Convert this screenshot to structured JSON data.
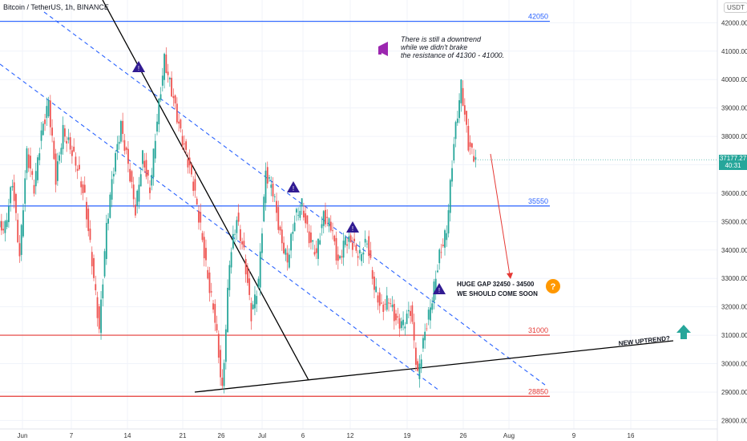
{
  "header": {
    "symbol": "Bitcoin / TetherUS, 1h, BINANCE",
    "currency": "USDT"
  },
  "price_tag": {
    "price": "37177.27",
    "countdown": "40:31"
  },
  "colors": {
    "up": "#26a69a",
    "down": "#ef5350",
    "blue_line": "#2962ff",
    "red_line": "#e53935",
    "trend_black": "#000000"
  },
  "chart_data": {
    "type": "line",
    "y_ticks": [
      "42000.00",
      "41000.00",
      "40000.00",
      "39000.00",
      "38000.00",
      "37000.00",
      "36000.00",
      "35000.00",
      "34000.00",
      "33000.00",
      "32000.00",
      "31000.00",
      "30000.00",
      "29000.00",
      "28000.00"
    ],
    "x_ticks": [
      "Jun",
      "7",
      "14",
      "21",
      "26",
      "Jul",
      "6",
      "12",
      "19",
      "26",
      "Aug",
      "9",
      "16"
    ],
    "ylim": [
      27700,
      42800
    ],
    "levels": [
      {
        "label": "42050",
        "value": 42050,
        "color": "#2962ff"
      },
      {
        "label": "35550",
        "value": 35550,
        "color": "#2962ff"
      },
      {
        "label": "31000",
        "value": 31000,
        "color": "#e53935"
      },
      {
        "label": "28850",
        "value": 28850,
        "color": "#e53935"
      }
    ],
    "series": [
      {
        "values": [
          34800,
          36400,
          33800,
          37400,
          36200,
          38100,
          39200,
          36500,
          38200,
          37600,
          36900,
          35800,
          33600,
          31200,
          34800,
          36900,
          38400,
          37000,
          35400,
          37300,
          36100,
          38600,
          40700,
          39600,
          38400,
          37400,
          36300,
          34800,
          33000,
          31600,
          29000,
          33600,
          35100,
          33900,
          31700,
          32900,
          36700,
          36100,
          34500,
          33600,
          35100,
          35600,
          34400,
          33900,
          35200,
          34900,
          33500,
          34400,
          34200,
          33800,
          34300,
          32700,
          31900,
          32300,
          31500,
          31400,
          31900,
          29600,
          31100,
          32300,
          33800,
          34700,
          37800,
          39800,
          37700,
          37200
        ]
      }
    ],
    "annotations": [
      "There is still a downtrend",
      "while we didn't brake",
      "the resistance of 41300 - 41000.",
      "HUGE GAP 32450 - 34500",
      "WE SHOULD COME SOON",
      "NEW UPTREND?"
    ]
  }
}
